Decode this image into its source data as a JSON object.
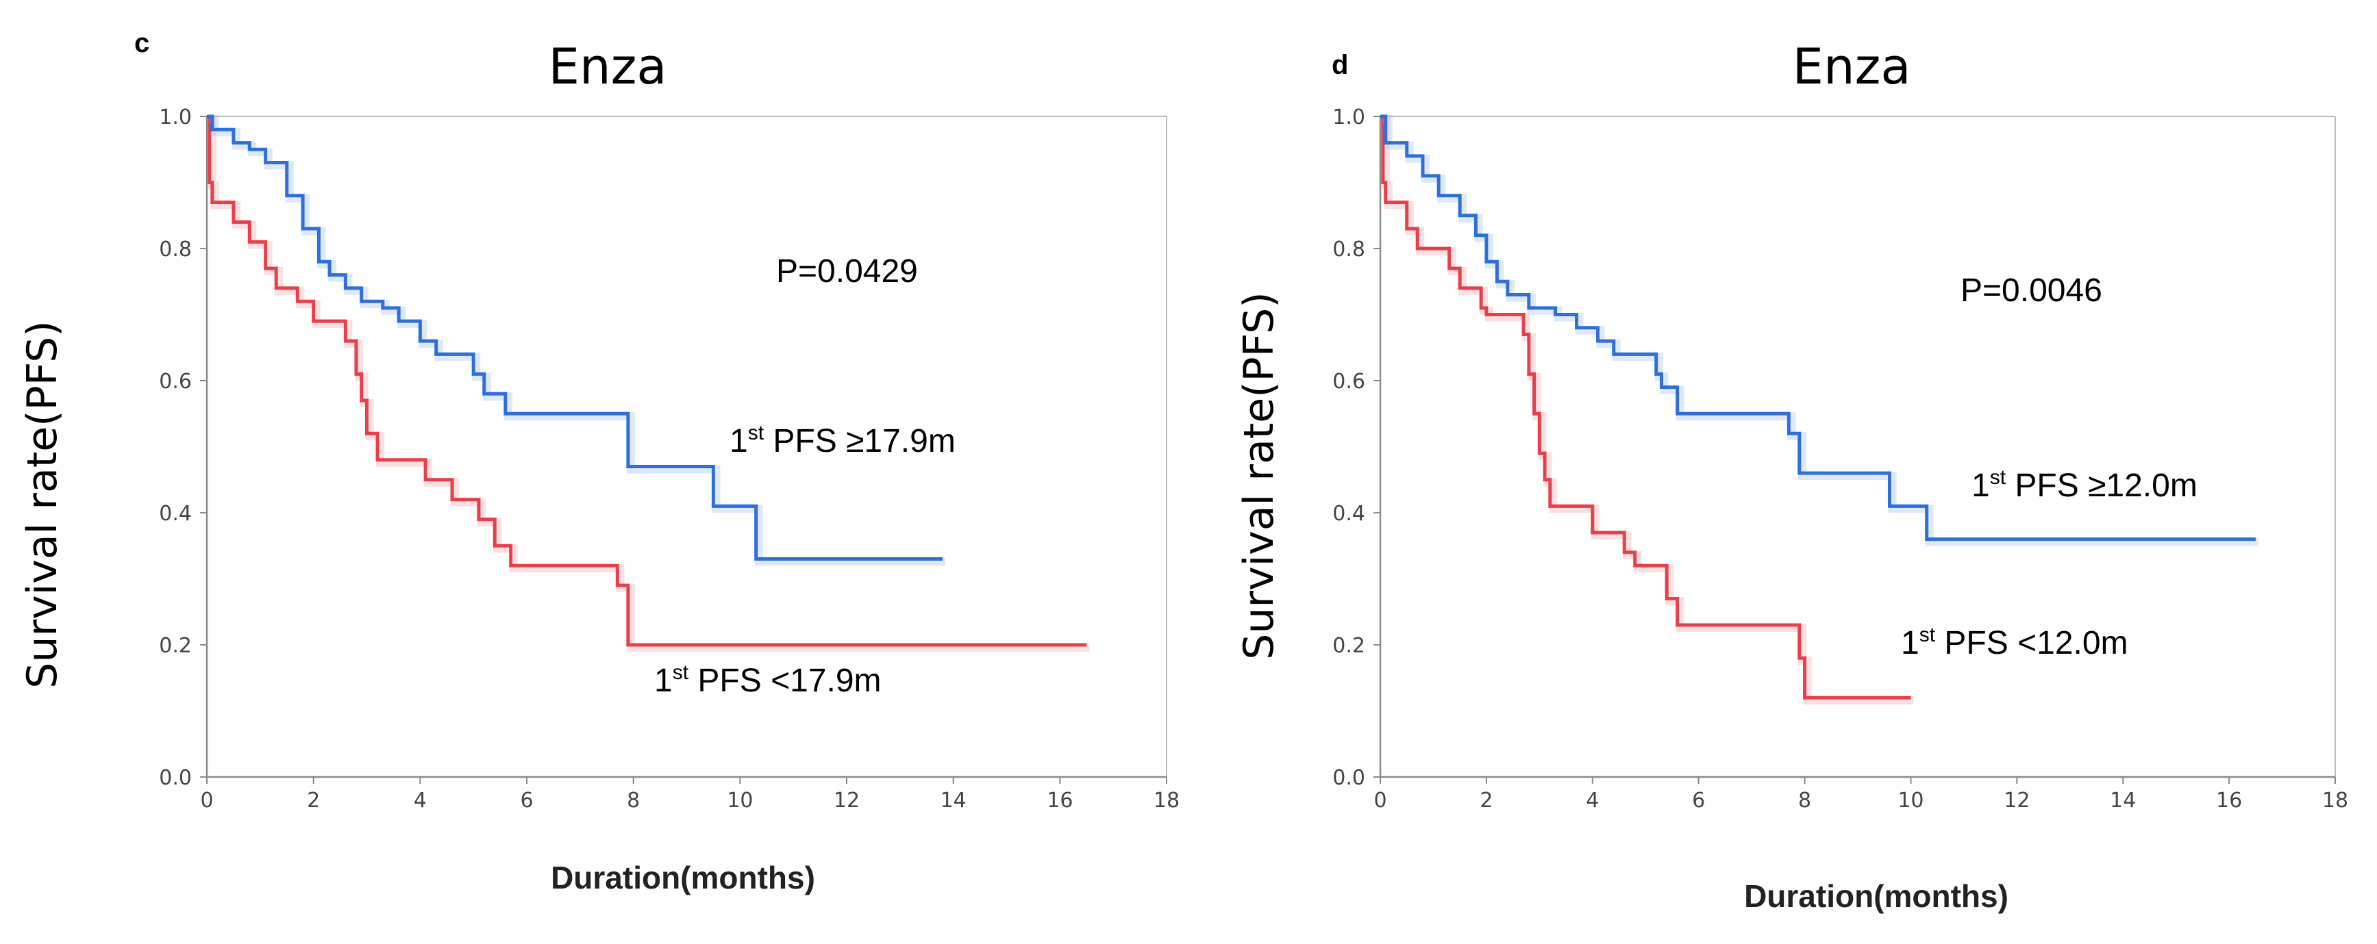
{
  "chart_data": [
    {
      "type": "line",
      "panel_label": "c",
      "title": "Enza",
      "xlabel": "Duration(months)",
      "ylabel": "Survival rate(PFS)",
      "xlim": [
        0,
        18
      ],
      "ylim": [
        0.0,
        1.0
      ],
      "xticks": [
        "0",
        "2",
        "4",
        "6",
        "8",
        "10",
        "12",
        "14",
        "16",
        "18"
      ],
      "yticks": [
        "0.0",
        "0.2",
        "0.4",
        "0.6",
        "0.8",
        "1.0"
      ],
      "p_value": "P=0.0429",
      "series": [
        {
          "name": "1st PFS ≥17.9m",
          "label_sup": "st",
          "label_pre": "1",
          "label_post": " PFS   ≥17.9m",
          "color": "#2f6fd6",
          "shadow": "#9dbcf0",
          "steps": [
            [
              0,
              1.0
            ],
            [
              0.1,
              0.98
            ],
            [
              0.5,
              0.96
            ],
            [
              0.8,
              0.95
            ],
            [
              1.1,
              0.93
            ],
            [
              1.5,
              0.88
            ],
            [
              1.8,
              0.83
            ],
            [
              2.1,
              0.78
            ],
            [
              2.3,
              0.76
            ],
            [
              2.6,
              0.74
            ],
            [
              2.9,
              0.72
            ],
            [
              3.3,
              0.71
            ],
            [
              3.6,
              0.69
            ],
            [
              4.0,
              0.66
            ],
            [
              4.3,
              0.64
            ],
            [
              5.0,
              0.61
            ],
            [
              5.2,
              0.58
            ],
            [
              5.6,
              0.55
            ],
            [
              7.9,
              0.47
            ],
            [
              9.5,
              0.41
            ],
            [
              10.3,
              0.33
            ],
            [
              13.8,
              0.33
            ]
          ]
        },
        {
          "name": "1st PFS <17.9m",
          "label_sup": "st",
          "label_pre": "1",
          "label_post": " PFS <17.9m",
          "color": "#e5404b",
          "shadow": "#f3a3a8",
          "steps": [
            [
              0,
              1.0
            ],
            [
              0.05,
              0.9
            ],
            [
              0.1,
              0.87
            ],
            [
              0.5,
              0.84
            ],
            [
              0.8,
              0.81
            ],
            [
              1.1,
              0.77
            ],
            [
              1.3,
              0.74
            ],
            [
              1.7,
              0.72
            ],
            [
              2.0,
              0.69
            ],
            [
              2.6,
              0.66
            ],
            [
              2.8,
              0.61
            ],
            [
              2.9,
              0.57
            ],
            [
              3.0,
              0.52
            ],
            [
              3.2,
              0.48
            ],
            [
              4.1,
              0.45
            ],
            [
              4.6,
              0.42
            ],
            [
              5.1,
              0.39
            ],
            [
              5.4,
              0.35
            ],
            [
              5.7,
              0.32
            ],
            [
              7.7,
              0.29
            ],
            [
              7.9,
              0.2
            ],
            [
              16.5,
              0.2
            ]
          ]
        }
      ],
      "annotation_positions": "p-value top-right; blue label mid-right; red label below curves"
    },
    {
      "type": "line",
      "panel_label": "d",
      "title": "Enza",
      "xlabel": "Duration(months)",
      "ylabel": "Survival rate(PFS)",
      "xlim": [
        0,
        18
      ],
      "ylim": [
        0.0,
        1.0
      ],
      "xticks": [
        "0",
        "2",
        "4",
        "6",
        "8",
        "10",
        "12",
        "14",
        "16",
        "18"
      ],
      "yticks": [
        "0.0",
        "0.2",
        "0.4",
        "0.6",
        "0.8",
        "1.0"
      ],
      "p_value": "P=0.0046",
      "series": [
        {
          "name": "1st PFS ≥12.0m",
          "label_sup": "st",
          "label_pre": "1",
          "label_post": " PFS ≥12.0m",
          "color": "#2f6fd6",
          "shadow": "#9dbcf0",
          "steps": [
            [
              0,
              1.0
            ],
            [
              0.1,
              0.96
            ],
            [
              0.5,
              0.94
            ],
            [
              0.8,
              0.91
            ],
            [
              1.1,
              0.88
            ],
            [
              1.5,
              0.85
            ],
            [
              1.8,
              0.82
            ],
            [
              2.0,
              0.78
            ],
            [
              2.2,
              0.75
            ],
            [
              2.4,
              0.73
            ],
            [
              2.8,
              0.71
            ],
            [
              3.3,
              0.7
            ],
            [
              3.7,
              0.68
            ],
            [
              4.1,
              0.66
            ],
            [
              4.4,
              0.64
            ],
            [
              5.2,
              0.61
            ],
            [
              5.3,
              0.59
            ],
            [
              5.6,
              0.55
            ],
            [
              7.7,
              0.52
            ],
            [
              7.9,
              0.46
            ],
            [
              9.6,
              0.41
            ],
            [
              10.3,
              0.36
            ],
            [
              16.5,
              0.36
            ]
          ]
        },
        {
          "name": "1st PFS <12.0m",
          "label_sup": "st",
          "label_pre": "1",
          "label_post": " PFS <12.0m",
          "color": "#e5404b",
          "shadow": "#f3a3a8",
          "steps": [
            [
              0,
              1.0
            ],
            [
              0.05,
              0.9
            ],
            [
              0.1,
              0.87
            ],
            [
              0.5,
              0.83
            ],
            [
              0.7,
              0.8
            ],
            [
              1.3,
              0.77
            ],
            [
              1.5,
              0.74
            ],
            [
              1.9,
              0.71
            ],
            [
              2.0,
              0.7
            ],
            [
              2.7,
              0.67
            ],
            [
              2.8,
              0.61
            ],
            [
              2.9,
              0.55
            ],
            [
              3.0,
              0.49
            ],
            [
              3.1,
              0.45
            ],
            [
              3.2,
              0.41
            ],
            [
              4.0,
              0.37
            ],
            [
              4.6,
              0.34
            ],
            [
              4.8,
              0.32
            ],
            [
              5.4,
              0.27
            ],
            [
              5.6,
              0.23
            ],
            [
              7.9,
              0.18
            ],
            [
              8.0,
              0.12
            ],
            [
              10.0,
              0.12
            ]
          ]
        }
      ],
      "annotation_positions": "p-value top-right; blue label right of blue tail; red label right of red curve"
    }
  ]
}
